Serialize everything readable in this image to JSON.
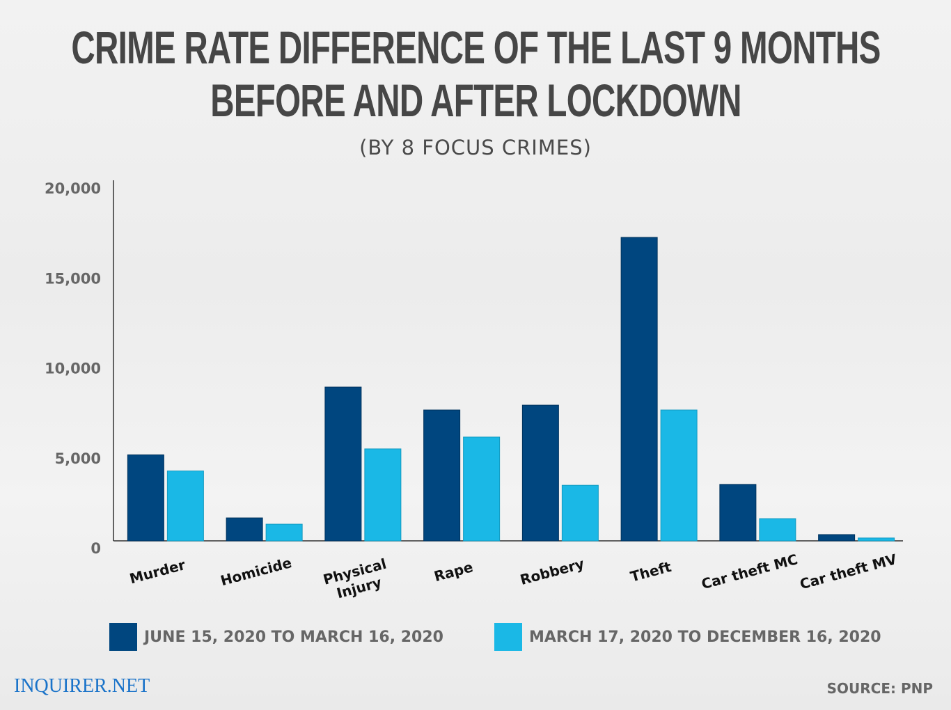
{
  "chart_data": {
    "type": "bar",
    "title": "CRIME RATE DIFFERENCE OF THE LAST 9 MONTHS BEFORE AND AFTER LOCKDOWN",
    "subtitle": "(BY 8 FOCUS CRIMES)",
    "categories": [
      "Murder",
      "Homicide",
      "Physical Injury",
      "Rape",
      "Robbery",
      "Theft",
      "Car theft MC",
      "Car theft MV"
    ],
    "series": [
      {
        "name": "JUNE 15, 2020 TO MARCH 16, 2020",
        "color": "#00467f",
        "values": [
          4800,
          1280,
          8580,
          7300,
          7570,
          16930,
          3150,
          350
        ]
      },
      {
        "name": "MARCH 17, 2020 TO DECEMBER 16, 2020",
        "color": "#1ab8e6",
        "values": [
          3900,
          930,
          5130,
          5790,
          3100,
          7300,
          1240,
          160
        ]
      }
    ],
    "yticks": [
      "20,000",
      "15,000",
      "10,000",
      "5,000",
      "0"
    ],
    "ylim": [
      0,
      20000
    ],
    "legend": "bottom",
    "grid": false
  },
  "footer": {
    "brand": "INQUIRER.NET",
    "source": "SOURCE: PNP"
  }
}
